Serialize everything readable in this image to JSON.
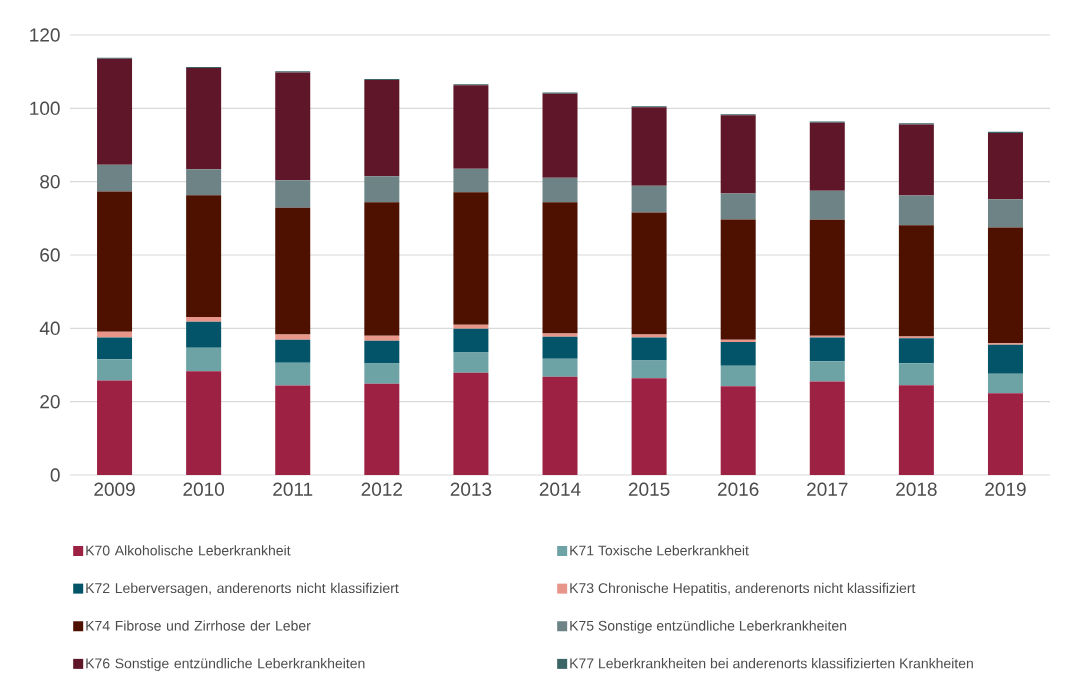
{
  "chart_data": {
    "type": "bar",
    "stacked": true,
    "categories": [
      "2009",
      "2010",
      "2011",
      "2012",
      "2013",
      "2014",
      "2015",
      "2016",
      "2017",
      "2018",
      "2019"
    ],
    "series": [
      {
        "name": "K70 Alkoholische Leberkrankheit",
        "color": "#9c2142",
        "values": [
          25.8,
          28.3,
          24.4,
          24.9,
          27.9,
          26.8,
          26.4,
          24.2,
          25.5,
          24.5,
          22.3
        ]
      },
      {
        "name": "K71 Toxische Leberkrankheit",
        "color": "#6ea3a6",
        "values": [
          5.8,
          6.4,
          6.2,
          5.5,
          5.5,
          4.9,
          4.8,
          5.6,
          5.5,
          6.0,
          5.3
        ]
      },
      {
        "name": "K72 Leberversagen, anderenorts nicht klassifiziert",
        "color": "#035468",
        "values": [
          5.9,
          7.1,
          6.3,
          6.2,
          6.5,
          6.0,
          6.3,
          6.5,
          6.5,
          6.8,
          7.9
        ]
      },
      {
        "name": "K73 Chronische Hepatitis, anderenorts nicht klassifiziert",
        "color": "#e8958a",
        "values": [
          1.6,
          1.3,
          1.4,
          1.4,
          1.1,
          0.9,
          0.8,
          0.6,
          0.5,
          0.5,
          0.4
        ]
      },
      {
        "name": "K74 Fibrose und Zirrhose der Leber",
        "color": "#4e1100",
        "values": [
          38.2,
          33.2,
          34.6,
          36.4,
          36.1,
          35.8,
          33.3,
          32.8,
          31.6,
          30.3,
          31.6
        ]
      },
      {
        "name": "K75 Sonstige entzündliche Leberkrankheiten",
        "color": "#6e8385",
        "values": [
          7.3,
          7.1,
          7.5,
          7.1,
          6.4,
          6.7,
          7.3,
          7.1,
          7.9,
          8.1,
          7.7
        ]
      },
      {
        "name": "K76 Sonstige entzündliche Leberkrankheiten",
        "color": "#5e1628",
        "values": [
          28.9,
          27.6,
          29.4,
          26.2,
          22.8,
          22.9,
          21.4,
          21.3,
          18.6,
          19.4,
          18.1
        ]
      },
      {
        "name": "K77 Leberkrankheiten bei anderenorts klassifizierten Krankheiten",
        "color": "#3a6466",
        "values": [
          0.3,
          0.3,
          0.3,
          0.3,
          0.3,
          0.3,
          0.3,
          0.3,
          0.3,
          0.3,
          0.3
        ]
      }
    ],
    "ylim": [
      0,
      120
    ],
    "yticks": [
      0,
      20,
      40,
      60,
      80,
      100,
      120
    ],
    "grid": "y",
    "legend": "bottom"
  }
}
